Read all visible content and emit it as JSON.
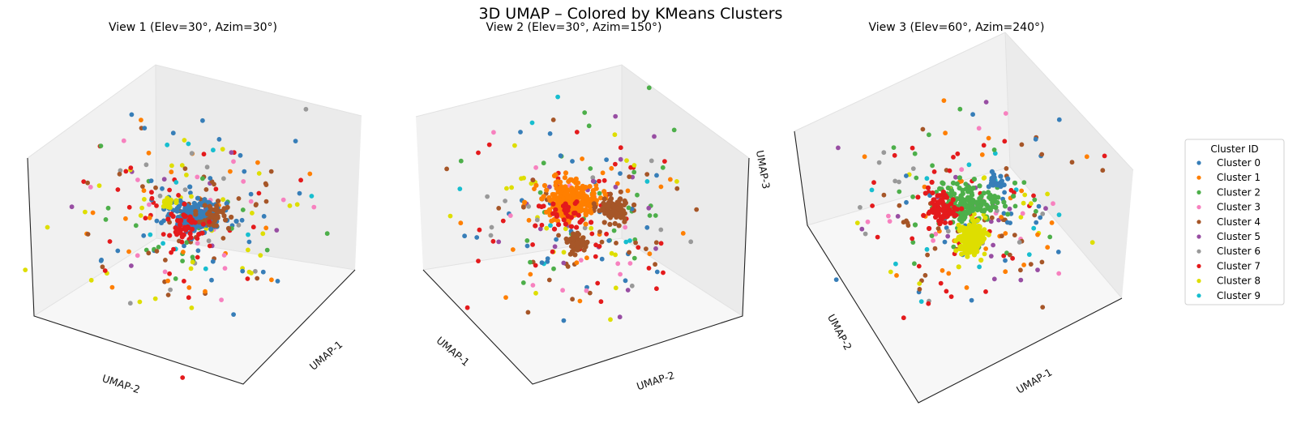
{
  "figure": {
    "title": "3D UMAP – Colored by KMeans Clusters"
  },
  "colors": {
    "pane_light": "#f7f7f7",
    "pane_mid": "#f1f1f1",
    "pane_dark": "#ebebeb",
    "grid_edge": "#e2e2e2",
    "axis_line": "#222222"
  },
  "chart_data": [
    {
      "type": "scatter",
      "title": "View 1 (Elev=30°, Azim=30°)",
      "elev": 30,
      "azim": 30,
      "axis_labels_visible": [
        "UMAP-1",
        "UMAP-2"
      ],
      "grid": false,
      "dominant_cluster": 0
    },
    {
      "type": "scatter",
      "title": "View 2 (Elev=30°, Azim=150°)",
      "elev": 30,
      "azim": 150,
      "axis_labels_visible": [
        "UMAP-1",
        "UMAP-2",
        "UMAP-3"
      ],
      "grid": false,
      "dominant_cluster": 1
    },
    {
      "type": "scatter",
      "title": "View 3 (Elev=60°, Azim=240°)",
      "elev": 60,
      "azim": 240,
      "axis_labels_visible": [
        "UMAP-2",
        "UMAP-1"
      ],
      "grid": false,
      "dominant_cluster": 8
    }
  ],
  "legend": {
    "title": "Cluster ID",
    "placement": "right",
    "entries": [
      {
        "label": "Cluster 0",
        "color": "#377eb8"
      },
      {
        "label": "Cluster 1",
        "color": "#ff7f00"
      },
      {
        "label": "Cluster 2",
        "color": "#4daf4a"
      },
      {
        "label": "Cluster 3",
        "color": "#f781bf"
      },
      {
        "label": "Cluster 4",
        "color": "#a65628"
      },
      {
        "label": "Cluster 5",
        "color": "#984ea3"
      },
      {
        "label": "Cluster 6",
        "color": "#999999"
      },
      {
        "label": "Cluster 7",
        "color": "#e41a1c"
      },
      {
        "label": "Cluster 8",
        "color": "#dede00"
      },
      {
        "label": "Cluster 9",
        "color": "#17becf"
      }
    ]
  },
  "axes": {
    "x": "UMAP-1",
    "y": "UMAP-2",
    "z": "UMAP-3"
  }
}
